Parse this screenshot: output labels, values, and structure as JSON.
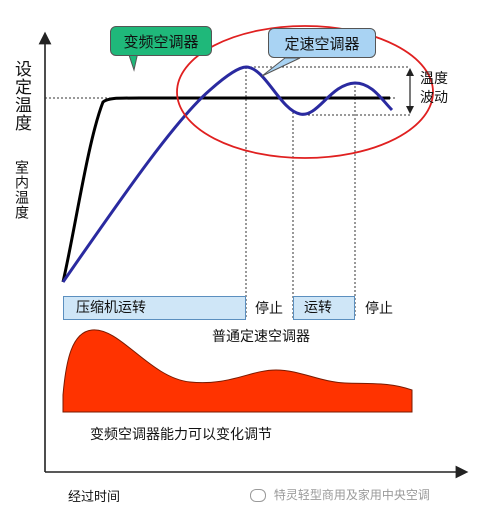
{
  "labels": {
    "set_temp": "设定温度",
    "room_temp": "室内温度",
    "time_axis": "经过时间",
    "temp_fluct": "温度波动",
    "inverter_callout": "变频空调器",
    "fixed_callout": "定速空调器",
    "compressor_run": "压缩机运转",
    "stop1": "停止",
    "run": "运转",
    "stop2": "停止",
    "normal_fixed": "普通定速空调器",
    "capability": "变频空调器能力可以变化调节",
    "watermark": "特灵轻型商用及家用中央空调"
  },
  "colors": {
    "inverter_curve": "#000000",
    "fixed_curve": "#2a2aa0",
    "capacity_fill": "#ff3300",
    "highlight_ellipse": "#e02020",
    "inverter_callout_bg": "#1fb87a",
    "fixed_callout_bg": "#a9d3f3",
    "bar_bg": "#cfe6f7"
  },
  "icons": {
    "watermark_icon": "wechat-icon"
  }
}
